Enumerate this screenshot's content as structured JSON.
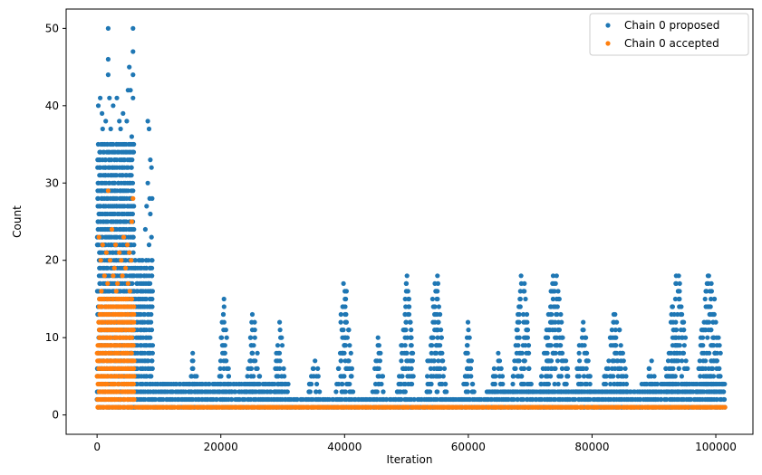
{
  "chart_data": {
    "type": "scatter",
    "title": "",
    "xlabel": "Iteration",
    "ylabel": "Count",
    "xlim": [
      -5000,
      106000
    ],
    "ylim": [
      -2.5,
      52.5
    ],
    "xticks": [
      0,
      20000,
      40000,
      60000,
      80000,
      100000
    ],
    "xtick_labels": [
      "0",
      "20000",
      "40000",
      "60000",
      "80000",
      "100000"
    ],
    "yticks": [
      0,
      10,
      20,
      30,
      40,
      50
    ],
    "ytick_labels": [
      "0",
      "10",
      "20",
      "30",
      "40",
      "50"
    ],
    "grid": false,
    "legend_position": "top-right",
    "series": [
      {
        "name": "Chain 0 proposed",
        "color": "#1f77b4",
        "bands": [
          {
            "x": [
              0,
              6000
            ],
            "y_min": 1,
            "y_max": 35
          },
          {
            "x": [
              6000,
              9000
            ],
            "y_min": 1,
            "y_max": 20
          },
          {
            "x": [
              9000,
              31000
            ],
            "y_min": 1,
            "y_max": 4
          },
          {
            "x": [
              31000,
              63000
            ],
            "y_min": 1,
            "y_max": 2
          },
          {
            "x": [
              63000,
              88000
            ],
            "y_min": 1,
            "y_max": 3
          },
          {
            "x": [
              88000,
              101500
            ],
            "y_min": 1,
            "y_max": 4
          }
        ],
        "clusters": [
          {
            "x": [
              14500,
              16500
            ],
            "peak": 8
          },
          {
            "x": [
              19500,
              21500
            ],
            "peak": 15
          },
          {
            "x": [
              24000,
              26500
            ],
            "peak": 13
          },
          {
            "x": [
              28500,
              30500
            ],
            "peak": 12
          },
          {
            "x": [
              34000,
              36500
            ],
            "peak": 7
          },
          {
            "x": [
              38500,
              41500
            ],
            "peak": 17
          },
          {
            "x": [
              44500,
              46500
            ],
            "peak": 10
          },
          {
            "x": [
              48500,
              51500
            ],
            "peak": 18
          },
          {
            "x": [
              53000,
              56500
            ],
            "peak": 18
          },
          {
            "x": [
              59000,
              61000
            ],
            "peak": 12
          },
          {
            "x": [
              63500,
              66000
            ],
            "peak": 8
          },
          {
            "x": [
              67000,
              70500
            ],
            "peak": 18
          },
          {
            "x": [
              71500,
              76500
            ],
            "peak": 18
          },
          {
            "x": [
              77000,
              80000
            ],
            "peak": 12
          },
          {
            "x": [
              81500,
              86000
            ],
            "peak": 13
          },
          {
            "x": [
              88500,
              90500
            ],
            "peak": 7
          },
          {
            "x": [
              91500,
              96000
            ],
            "peak": 18
          },
          {
            "x": [
              96500,
              101500
            ],
            "peak": 18
          }
        ],
        "outliers": [
          {
            "x": 1800,
            "y": 50
          },
          {
            "x": 5800,
            "y": 50
          },
          {
            "x": 1800,
            "y": 46
          },
          {
            "x": 5800,
            "y": 47
          },
          {
            "x": 5200,
            "y": 45
          },
          {
            "x": 1800,
            "y": 44
          },
          {
            "x": 5800,
            "y": 44
          },
          {
            "x": 5000,
            "y": 42
          },
          {
            "x": 5400,
            "y": 42
          },
          {
            "x": 500,
            "y": 41
          },
          {
            "x": 2000,
            "y": 41
          },
          {
            "x": 3200,
            "y": 41
          },
          {
            "x": 5800,
            "y": 41
          },
          {
            "x": 200,
            "y": 40
          },
          {
            "x": 800,
            "y": 39
          },
          {
            "x": 2600,
            "y": 40
          },
          {
            "x": 4200,
            "y": 39
          },
          {
            "x": 1400,
            "y": 38
          },
          {
            "x": 3600,
            "y": 38
          },
          {
            "x": 4800,
            "y": 38
          },
          {
            "x": 900,
            "y": 37
          },
          {
            "x": 2200,
            "y": 37
          },
          {
            "x": 3800,
            "y": 37
          },
          {
            "x": 5600,
            "y": 36
          },
          {
            "x": 8200,
            "y": 38
          },
          {
            "x": 8400,
            "y": 37
          },
          {
            "x": 8600,
            "y": 33
          },
          {
            "x": 8800,
            "y": 32
          },
          {
            "x": 8200,
            "y": 30
          },
          {
            "x": 8500,
            "y": 28
          },
          {
            "x": 8900,
            "y": 28
          },
          {
            "x": 8000,
            "y": 27
          },
          {
            "x": 8600,
            "y": 26
          },
          {
            "x": 7800,
            "y": 24
          },
          {
            "x": 8800,
            "y": 23
          },
          {
            "x": 8400,
            "y": 22
          }
        ]
      },
      {
        "name": "Chain 0 accepted",
        "color": "#ff7f0e",
        "bands": [
          {
            "x": [
              0,
              6000
            ],
            "y_min": 1,
            "y_max": 15
          },
          {
            "x": [
              6000,
              101500
            ],
            "y_min": 1,
            "y_max": 1
          }
        ],
        "outliers": [
          {
            "x": 1800,
            "y": 29
          },
          {
            "x": 5800,
            "y": 28
          },
          {
            "x": 5600,
            "y": 25
          },
          {
            "x": 300,
            "y": 23
          },
          {
            "x": 900,
            "y": 22
          },
          {
            "x": 2400,
            "y": 24
          },
          {
            "x": 3000,
            "y": 22
          },
          {
            "x": 4300,
            "y": 23
          },
          {
            "x": 4900,
            "y": 22
          },
          {
            "x": 1500,
            "y": 21
          },
          {
            "x": 3600,
            "y": 21
          },
          {
            "x": 5200,
            "y": 21
          },
          {
            "x": 600,
            "y": 20
          },
          {
            "x": 2100,
            "y": 20
          },
          {
            "x": 2800,
            "y": 19
          },
          {
            "x": 3900,
            "y": 20
          },
          {
            "x": 4600,
            "y": 19
          },
          {
            "x": 5500,
            "y": 20
          },
          {
            "x": 1200,
            "y": 18
          },
          {
            "x": 2600,
            "y": 18
          },
          {
            "x": 3300,
            "y": 17
          },
          {
            "x": 4100,
            "y": 18
          },
          {
            "x": 5000,
            "y": 17
          },
          {
            "x": 700,
            "y": 16
          },
          {
            "x": 1700,
            "y": 17
          },
          {
            "x": 3100,
            "y": 16
          },
          {
            "x": 5300,
            "y": 16
          }
        ]
      }
    ]
  }
}
